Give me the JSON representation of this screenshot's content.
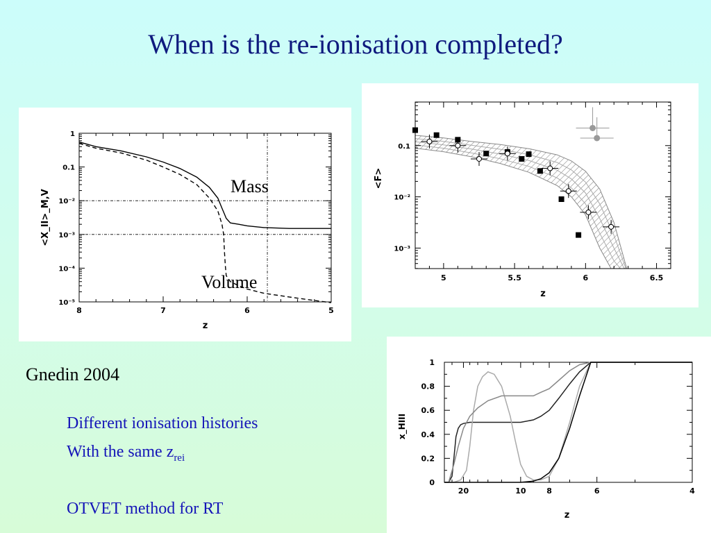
{
  "slide": {
    "title": "When is the re-ionisation completed?",
    "caption": "Gnedin 2004",
    "notes": {
      "line1": "Different ionisation histories",
      "line2_prefix": "With the same z",
      "line2_sub": "rei",
      "line3": "OTVET  method for RT"
    }
  },
  "chart_data": [
    {
      "id": "left",
      "type": "line",
      "xlabel": "z",
      "ylabel": "<X_II>_M,V",
      "xlim": [
        8,
        5
      ],
      "ylim_log10": [
        -5,
        0
      ],
      "x_ticks": [
        "8",
        "7",
        "6",
        "5"
      ],
      "y_ticks": [
        "1",
        "0.1",
        "10⁻²",
        "10⁻³",
        "10⁻⁴",
        "10⁻⁵"
      ],
      "reference_lines": {
        "x": 5.76,
        "y": [
          0.01,
          0.001
        ]
      },
      "series": [
        {
          "name": "Mass",
          "style": "solid",
          "x": [
            8.0,
            7.8,
            7.5,
            7.2,
            7.0,
            6.8,
            6.6,
            6.45,
            6.35,
            6.3,
            6.27,
            6.25,
            6.2,
            6.1,
            6.0,
            5.8,
            5.5,
            5.2,
            5.0
          ],
          "y": [
            0.55,
            0.4,
            0.3,
            0.2,
            0.14,
            0.09,
            0.05,
            0.025,
            0.012,
            0.006,
            0.004,
            0.003,
            0.0022,
            0.002,
            0.0018,
            0.0016,
            0.0015,
            0.0015,
            0.0015
          ]
        },
        {
          "name": "Volume",
          "style": "dashed",
          "x": [
            8.0,
            7.8,
            7.5,
            7.2,
            7.0,
            6.8,
            6.6,
            6.45,
            6.35,
            6.3,
            6.28,
            6.27,
            6.26,
            6.25,
            6.2,
            6.1,
            6.0,
            5.8,
            5.5,
            5.2,
            5.0
          ],
          "y": [
            0.5,
            0.36,
            0.26,
            0.16,
            0.1,
            0.06,
            0.03,
            0.012,
            0.005,
            0.002,
            0.001,
            0.0003,
            0.00012,
            6e-05,
            4e-05,
            3e-05,
            2.4e-05,
            1.8e-05,
            1.4e-05,
            1.1e-05,
            9.5e-06
          ]
        }
      ]
    },
    {
      "id": "top-right",
      "type": "scatter",
      "xlabel": "z",
      "ylabel": "<F>",
      "xlim": [
        4.8,
        6.6
      ],
      "ylim_log10": [
        -3.4,
        -0.15
      ],
      "x_ticks": [
        "5",
        "5.5",
        "6",
        "6.5"
      ],
      "y_ticks": [
        "0.1",
        "10⁻²",
        "10⁻³"
      ],
      "band": {
        "x": [
          4.8,
          5.0,
          5.2,
          5.4,
          5.6,
          5.8,
          5.9,
          6.0,
          6.1,
          6.2,
          6.3
        ],
        "upper_log10": [
          -0.8,
          -0.85,
          -0.92,
          -0.98,
          -1.06,
          -1.18,
          -1.3,
          -1.5,
          -1.85,
          -2.5,
          -3.5
        ],
        "lower_log10": [
          -1.05,
          -1.12,
          -1.22,
          -1.35,
          -1.52,
          -1.78,
          -2.0,
          -2.35,
          -3.0,
          -3.5,
          -3.6
        ]
      },
      "series": [
        {
          "name": "",
          "marker": "filled-square",
          "x": [
            4.8,
            4.95,
            5.1,
            5.3,
            5.45,
            5.55,
            5.6,
            5.68,
            5.83,
            5.95
          ],
          "y": [
            0.2,
            0.16,
            0.13,
            0.07,
            0.075,
            0.055,
            0.068,
            0.032,
            0.009,
            0.0018
          ]
        },
        {
          "name": "",
          "marker": "open-circle",
          "x": [
            4.9,
            5.1,
            5.25,
            5.45,
            5.75,
            5.88,
            6.02,
            6.18
          ],
          "y": [
            0.12,
            0.1,
            0.055,
            0.07,
            0.036,
            0.013,
            0.005,
            0.0026
          ]
        },
        {
          "name": "",
          "marker": "grey-circle",
          "x": [
            6.05,
            6.08
          ],
          "y": [
            0.22,
            0.14
          ]
        }
      ]
    },
    {
      "id": "bottom-right",
      "type": "line",
      "xlabel": "z",
      "ylabel": "x_HIII",
      "xlim": [
        30,
        4
      ],
      "x_scale": "reciprocal",
      "ylim": [
        0,
        1
      ],
      "x_ticks": [
        "20",
        "10",
        "8",
        "6",
        "4"
      ],
      "y_ticks": [
        "1",
        "0.8",
        "0.6",
        "0.4",
        "0.2",
        "0"
      ],
      "series": [
        {
          "name": "",
          "color": "#222222",
          "x": [
            30,
            27,
            25,
            24,
            23,
            22,
            21,
            20,
            18,
            16,
            14,
            12,
            10,
            9,
            8.5,
            8,
            7.5,
            7,
            6.6,
            6.2,
            5.5,
            4
          ],
          "y": [
            0,
            0,
            0.05,
            0.2,
            0.38,
            0.45,
            0.48,
            0.49,
            0.5,
            0.5,
            0.5,
            0.5,
            0.5,
            0.52,
            0.55,
            0.6,
            0.7,
            0.82,
            0.92,
            1,
            1,
            1
          ]
        },
        {
          "name": "",
          "color": "#aaaaaa",
          "x": [
            30,
            24,
            21,
            19,
            18,
            17,
            16,
            15,
            14,
            13,
            12,
            11,
            10.5,
            10,
            9.5,
            9,
            8.5,
            8,
            7.5,
            7,
            6.6,
            6.2,
            5.5,
            4
          ],
          "y": [
            0,
            0,
            0.02,
            0.1,
            0.3,
            0.6,
            0.8,
            0.88,
            0.92,
            0.9,
            0.8,
            0.55,
            0.35,
            0.15,
            0.05,
            0.02,
            0.02,
            0.05,
            0.2,
            0.5,
            0.8,
            1,
            1,
            1
          ]
        },
        {
          "name": "",
          "color": "#888888",
          "x": [
            30,
            27,
            24,
            22,
            20,
            18,
            16,
            14,
            12,
            10,
            9,
            8.5,
            8,
            7.5,
            7,
            6.6,
            6.2,
            5.5,
            4
          ],
          "y": [
            0,
            0,
            0.15,
            0.3,
            0.45,
            0.55,
            0.62,
            0.68,
            0.72,
            0.72,
            0.72,
            0.75,
            0.78,
            0.85,
            0.93,
            0.98,
            1,
            1,
            1
          ]
        },
        {
          "name": "",
          "color": "#000000",
          "x": [
            30,
            20,
            15,
            12,
            10,
            9,
            8.5,
            8,
            7.5,
            7,
            6.6,
            6.2,
            5.5,
            4
          ],
          "y": [
            0,
            0,
            0,
            0,
            0,
            0.01,
            0.03,
            0.08,
            0.2,
            0.45,
            0.72,
            1,
            1,
            1
          ]
        }
      ]
    }
  ],
  "labels": {
    "mass": "Mass",
    "volume": "Volume"
  }
}
